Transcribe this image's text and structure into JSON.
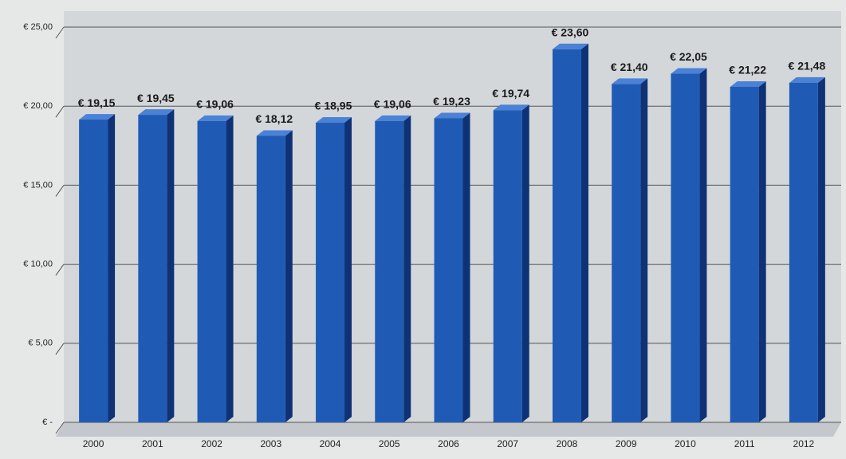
{
  "chart_data": {
    "type": "bar",
    "categories": [
      "2000",
      "2001",
      "2002",
      "2003",
      "2004",
      "2005",
      "2006",
      "2007",
      "2008",
      "2009",
      "2010",
      "2011",
      "2012"
    ],
    "values": [
      19.15,
      19.45,
      19.06,
      18.12,
      18.95,
      19.06,
      19.23,
      19.74,
      23.6,
      21.4,
      22.05,
      21.22,
      21.48
    ],
    "value_labels": [
      "€ 19,15",
      "€ 19,45",
      "€ 19,06",
      "€ 18,12",
      "€ 18,95",
      "€ 19,06",
      "€ 19,23",
      "€ 19,74",
      "€ 23,60",
      "€ 21,40",
      "€ 22,05",
      "€ 21,22",
      "€ 21,48"
    ],
    "color": "#1f5bb5",
    "ylim": [
      0,
      25
    ],
    "yticks": [
      {
        "value": 0,
        "label": "€ -"
      },
      {
        "value": 5,
        "label": "€ 5,00"
      },
      {
        "value": 10,
        "label": "€ 10,00"
      },
      {
        "value": 15,
        "label": "€ 15,00"
      },
      {
        "value": 20,
        "label": "€ 20,00"
      },
      {
        "value": 25,
        "label": "€ 25,00"
      }
    ],
    "grid": true
  }
}
